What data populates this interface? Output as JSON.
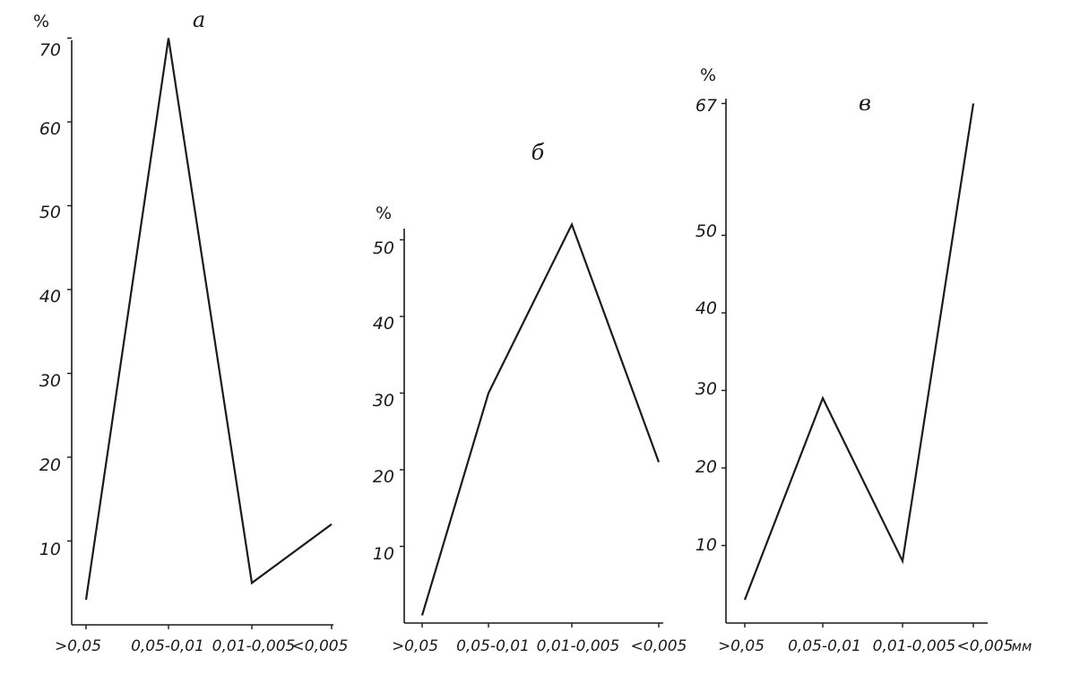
{
  "chart_data": [
    {
      "type": "line",
      "title": "а",
      "ylabel": "%",
      "ylim": [
        0,
        70
      ],
      "yticks": [
        "10",
        "20",
        "30",
        "40",
        "50",
        "60",
        "70"
      ],
      "categories": [
        ">0,05",
        "0,05-0,01",
        "0,01-0,005",
        "<0,005"
      ],
      "values": [
        3,
        70,
        5,
        12
      ]
    },
    {
      "type": "line",
      "title": "б",
      "ylabel": "%",
      "ylim": [
        0,
        52
      ],
      "yticks": [
        "10",
        "20",
        "30",
        "40",
        "50"
      ],
      "categories": [
        ">0,05",
        "0,05-0,01",
        "0,01-0,005",
        "<0,005"
      ],
      "values": [
        1,
        30,
        52,
        21
      ]
    },
    {
      "type": "line",
      "title": "в",
      "ylabel": "%",
      "ylim": [
        0,
        67
      ],
      "yticks": [
        "10",
        "20",
        "30",
        "40",
        "50",
        "67"
      ],
      "categories": [
        ">0,05",
        "0,05-0,01",
        "0,01-0,005",
        "<0,005"
      ],
      "values": [
        3,
        29,
        8,
        67
      ],
      "xunit": "мм"
    }
  ]
}
